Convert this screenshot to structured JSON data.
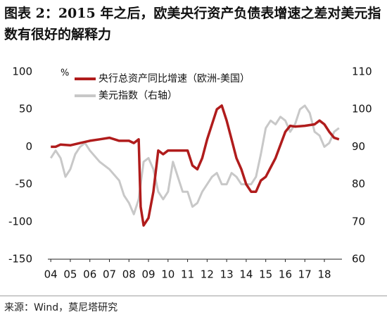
{
  "chart_data": {
    "type": "line",
    "title": "图表 2：2015 年之后，欧美央行资产负债表增速之差对美元指数有很好的解释力",
    "ylabel": "%",
    "source": "来源：Wind，莫尼塔研究",
    "legend": "upper left",
    "xlim": [
      2003.85,
      2018.9
    ],
    "xticks": [
      {
        "value": 2004,
        "label": "04"
      },
      {
        "value": 2005,
        "label": "05"
      },
      {
        "value": 2006,
        "label": "06"
      },
      {
        "value": 2007,
        "label": "07"
      },
      {
        "value": 2008,
        "label": "08"
      },
      {
        "value": 2009,
        "label": "09"
      },
      {
        "value": 2010,
        "label": "10"
      },
      {
        "value": 2011,
        "label": "11"
      },
      {
        "value": 2012,
        "label": "12"
      },
      {
        "value": 2013,
        "label": "13"
      },
      {
        "value": 2014,
        "label": "14"
      },
      {
        "value": 2015,
        "label": "15"
      },
      {
        "value": 2016,
        "label": "16"
      },
      {
        "value": 2017,
        "label": "17"
      },
      {
        "value": 2018,
        "label": "18"
      }
    ],
    "ylim": [
      -150,
      100
    ],
    "yticks": [
      100,
      50,
      0,
      -50,
      -100,
      -150
    ],
    "y2lim": [
      60,
      110
    ],
    "y2ticks": [
      110,
      100,
      90,
      80,
      70,
      60
    ],
    "series": [
      {
        "name": "央行总资产同比增速（欧洲-美国）",
        "color": "#b01c1c",
        "axis": "y",
        "x": [
          2004,
          2004.25,
          2004.5,
          2005,
          2005.5,
          2006,
          2006.5,
          2007,
          2007.5,
          2008,
          2008.25,
          2008.5,
          2008.6,
          2008.75,
          2009,
          2009.25,
          2009.5,
          2009.75,
          2010,
          2010.5,
          2011,
          2011.25,
          2011.5,
          2011.75,
          2012,
          2012.25,
          2012.5,
          2012.75,
          2013,
          2013.25,
          2013.5,
          2013.75,
          2014,
          2014.25,
          2014.5,
          2014.75,
          2015,
          2015.5,
          2016,
          2016.25,
          2016.5,
          2017,
          2017.5,
          2017.75,
          2018,
          2018.25,
          2018.5,
          2018.75
        ],
        "values": [
          0,
          0,
          3,
          2,
          5,
          8,
          10,
          12,
          8,
          8,
          5,
          10,
          -80,
          -105,
          -95,
          -60,
          -5,
          -10,
          -5,
          -5,
          -5,
          -25,
          -30,
          -15,
          10,
          30,
          50,
          55,
          35,
          10,
          -15,
          -30,
          -50,
          -60,
          -60,
          -45,
          -40,
          -15,
          20,
          28,
          27,
          28,
          30,
          35,
          30,
          20,
          12,
          10
        ]
      },
      {
        "name": "美元指数（右轴）",
        "color": "#c8c8c8",
        "axis": "y2",
        "x": [
          2004,
          2004.25,
          2004.5,
          2004.75,
          2005,
          2005.25,
          2005.5,
          2005.75,
          2006,
          2006.5,
          2007,
          2007.5,
          2007.75,
          2008,
          2008.25,
          2008.5,
          2008.75,
          2009,
          2009.25,
          2009.5,
          2009.75,
          2010,
          2010.25,
          2010.5,
          2010.75,
          2011,
          2011.25,
          2011.5,
          2011.75,
          2012,
          2012.25,
          2012.5,
          2012.75,
          2013,
          2013.25,
          2013.5,
          2013.75,
          2014,
          2014.25,
          2014.5,
          2014.75,
          2015,
          2015.25,
          2015.5,
          2015.75,
          2016,
          2016.25,
          2016.5,
          2016.75,
          2017,
          2017.25,
          2017.5,
          2017.75,
          2018,
          2018.25,
          2018.5,
          2018.75
        ],
        "values": [
          87,
          89,
          87,
          82,
          84,
          88,
          90,
          91,
          89,
          86,
          84,
          81,
          77,
          75,
          72,
          76,
          86,
          87,
          84,
          78,
          76,
          78,
          86,
          82,
          78,
          78,
          74,
          75,
          78,
          80,
          82,
          83,
          80,
          80,
          83,
          82,
          80,
          80,
          80,
          82,
          88,
          95,
          97,
          96,
          98,
          97,
          94,
          96,
          100,
          101,
          99,
          94,
          93,
          90,
          91,
          94,
          95
        ]
      }
    ]
  }
}
